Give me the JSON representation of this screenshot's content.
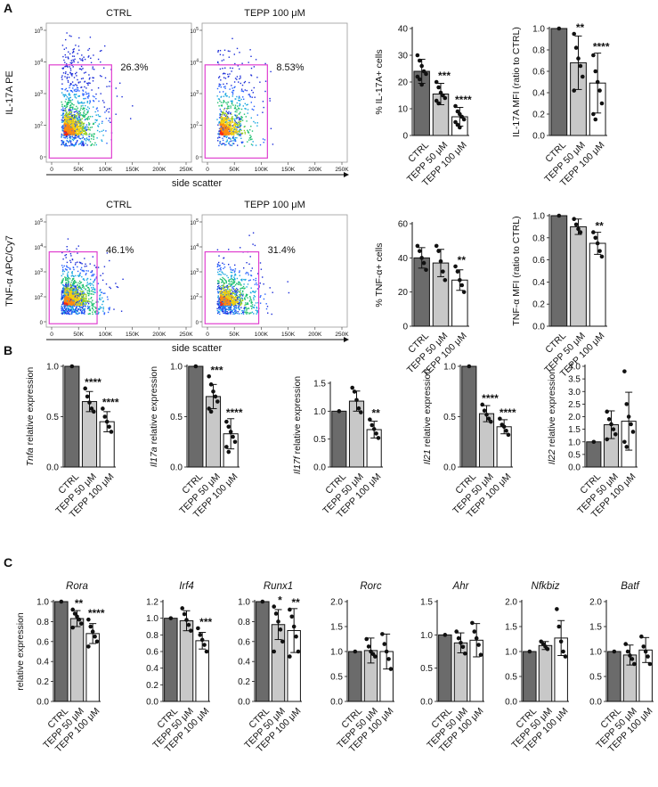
{
  "panels": {
    "a": "A",
    "b": "B",
    "c": "C"
  },
  "colors": {
    "ctrl": "#6b6b6b",
    "tepp50": "#c8c8c8",
    "tepp100": "#ffffff",
    "gate": "#e040d0",
    "axis": "#111111"
  },
  "icons": {
    "star": "significance-asterisk"
  },
  "flow": {
    "x_axis_label": "side scatter",
    "x_ticks": [
      "0",
      "50K",
      "100K",
      "150K",
      "200K",
      "250K"
    ],
    "y_ticks": [
      "10^5",
      "10^4",
      "10^3",
      "10^2",
      "0"
    ],
    "rows": [
      {
        "y_label": "IL-17A PE",
        "plots": [
          {
            "title": "CTRL",
            "gate_pct": "26.3%"
          },
          {
            "title": "TEPP 100 μM",
            "gate_pct": "8.53%"
          }
        ]
      },
      {
        "y_label": "TNF-α APC/Cy7",
        "plots": [
          {
            "title": "CTRL",
            "gate_pct": "46.1%"
          },
          {
            "title": "TEPP 100 μM",
            "gate_pct": "31.4%"
          }
        ]
      }
    ]
  },
  "chart_data": [
    {
      "id": "a1",
      "type": "bar",
      "panel": "A",
      "title": "",
      "ylabel": "% IL-17A+ cells",
      "ylim": [
        0,
        40
      ],
      "yticks": [
        "0",
        "10",
        "20",
        "30",
        "40"
      ],
      "categories": [
        "CTRL",
        "TEPP 50 μM",
        "TEPP 100 μM"
      ],
      "values": [
        24,
        15.5,
        7
      ],
      "errors": [
        4.5,
        4,
        3.5
      ],
      "significance": [
        "",
        "***",
        "****"
      ],
      "points": [
        [
          30,
          28,
          26,
          24,
          23,
          22,
          21,
          19
        ],
        [
          20,
          18,
          16,
          15,
          14,
          13,
          12
        ],
        [
          11,
          9,
          8,
          7,
          6,
          5,
          4,
          3
        ]
      ]
    },
    {
      "id": "a2",
      "type": "bar",
      "panel": "A",
      "title": "",
      "ylabel": "IL-17A MFI (ratio to CTRL)",
      "ylim": [
        0,
        1.0
      ],
      "yticks": [
        "0.0",
        "0.2",
        "0.4",
        "0.6",
        "0.8",
        "1.0"
      ],
      "categories": [
        "CTRL",
        "TEPP 50 μM",
        "TEPP 100 μM"
      ],
      "values": [
        1.0,
        0.68,
        0.49
      ],
      "errors": [
        0,
        0.25,
        0.28
      ],
      "significance": [
        "",
        "**",
        "****"
      ],
      "points": [
        [
          1.0
        ],
        [
          0.95,
          0.82,
          0.72,
          0.65,
          0.55,
          0.42
        ],
        [
          0.75,
          0.6,
          0.5,
          0.42,
          0.3,
          0.2,
          0.15
        ]
      ]
    },
    {
      "id": "a3",
      "type": "bar",
      "panel": "A",
      "title": "",
      "ylabel": "% TNF-α+ cells",
      "ylim": [
        0,
        60
      ],
      "yticks": [
        "0",
        "20",
        "40",
        "60"
      ],
      "categories": [
        "CTRL",
        "TEPP 50 μM",
        "TEPP 100 μM"
      ],
      "values": [
        40,
        37,
        27
      ],
      "errors": [
        6,
        8,
        6
      ],
      "significance": [
        "",
        "",
        "**"
      ],
      "points": [
        [
          47,
          44,
          40,
          37,
          33
        ],
        [
          47,
          44,
          38,
          32,
          27
        ],
        [
          35,
          32,
          27,
          24,
          20
        ]
      ]
    },
    {
      "id": "a4",
      "type": "bar",
      "panel": "A",
      "title": "",
      "ylabel": "TNF-α MFI (ratio to CTRL)",
      "ylim": [
        0,
        1.0
      ],
      "yticks": [
        "0.0",
        "0.2",
        "0.4",
        "0.6",
        "0.8",
        "1.0"
      ],
      "categories": [
        "CTRL",
        "TEPP 50 μM",
        "TEPP 100 μM"
      ],
      "values": [
        1.0,
        0.9,
        0.75
      ],
      "errors": [
        0,
        0.07,
        0.1
      ],
      "significance": [
        "",
        "",
        "**"
      ],
      "points": [
        [
          1.0
        ],
        [
          0.97,
          0.92,
          0.88,
          0.85
        ],
        [
          0.85,
          0.8,
          0.75,
          0.68,
          0.63
        ]
      ]
    },
    {
      "id": "b1",
      "type": "bar",
      "panel": "B",
      "title": "",
      "ylabel": "Tnfa relative expression",
      "ylabel_italic": "Tnfa",
      "ylabel_rest": " relative expression",
      "ylim": [
        0,
        1.0
      ],
      "yticks": [
        "0.0",
        "0.5",
        "1.0"
      ],
      "categories": [
        "CTRL",
        "TEPP 50 μM",
        "TEPP 100 μM"
      ],
      "values": [
        1.0,
        0.65,
        0.45
      ],
      "errors": [
        0,
        0.1,
        0.1
      ],
      "significance": [
        "",
        "****",
        "****"
      ],
      "points": [
        [
          1.0
        ],
        [
          0.78,
          0.7,
          0.64,
          0.58,
          0.55
        ],
        [
          0.58,
          0.5,
          0.45,
          0.4,
          0.35
        ]
      ]
    },
    {
      "id": "b2",
      "type": "bar",
      "panel": "B",
      "title": "",
      "ylabel": "Il17a relative expression",
      "ylabel_italic": "Il17a",
      "ylabel_rest": " relative expression",
      "ylim": [
        0,
        1.0
      ],
      "yticks": [
        "0.0",
        "0.5",
        "1.0"
      ],
      "categories": [
        "CTRL",
        "TEPP 50 μM",
        "TEPP 100 μM"
      ],
      "values": [
        1.0,
        0.7,
        0.33
      ],
      "errors": [
        0,
        0.12,
        0.15
      ],
      "significance": [
        "",
        "***",
        "****"
      ],
      "points": [
        [
          1.0
        ],
        [
          0.9,
          0.82,
          0.75,
          0.7,
          0.65,
          0.58,
          0.55
        ],
        [
          0.45,
          0.4,
          0.35,
          0.3,
          0.25,
          0.2,
          0.15
        ]
      ]
    },
    {
      "id": "b3",
      "type": "bar",
      "panel": "B",
      "title": "",
      "ylabel": "Il17f relative expression",
      "ylabel_italic": "Il17f",
      "ylabel_rest": " relative expression",
      "ylim": [
        0,
        1.5
      ],
      "yticks": [
        "0.0",
        "0.5",
        "1.0",
        "1.5"
      ],
      "categories": [
        "CTRL",
        "TEPP 50 μM",
        "TEPP 100 μM"
      ],
      "values": [
        1.0,
        1.18,
        0.67
      ],
      "errors": [
        0,
        0.18,
        0.15
      ],
      "significance": [
        "",
        "",
        "**"
      ],
      "points": [
        [
          1.0
        ],
        [
          1.42,
          1.35,
          1.2,
          1.05,
          0.98
        ],
        [
          0.85,
          0.75,
          0.68,
          0.6,
          0.52
        ]
      ]
    },
    {
      "id": "b4",
      "type": "bar",
      "panel": "B",
      "title": "",
      "ylabel": "Il21 relative expression",
      "ylabel_italic": "Il21",
      "ylabel_rest": " relative expression",
      "ylim": [
        0,
        1.0
      ],
      "yticks": [
        "0.0",
        "0.5",
        "1.0"
      ],
      "categories": [
        "CTRL",
        "TEPP 50 μM",
        "TEPP 100 μM"
      ],
      "values": [
        1.0,
        0.53,
        0.4
      ],
      "errors": [
        0,
        0.08,
        0.07
      ],
      "significance": [
        "",
        "****",
        "****"
      ],
      "points": [
        [
          1.0
        ],
        [
          0.62,
          0.56,
          0.52,
          0.48,
          0.45
        ],
        [
          0.48,
          0.42,
          0.4,
          0.36,
          0.32
        ]
      ]
    },
    {
      "id": "b5",
      "type": "bar",
      "panel": "B",
      "title": "",
      "ylabel": "Il22 relative expression",
      "ylabel_italic": "Il22",
      "ylabel_rest": " relative expression",
      "ylim": [
        0,
        4.0
      ],
      "yticks": [
        "0.0",
        "0.5",
        "1.0",
        "1.5",
        "2.0",
        "2.5",
        "3.0",
        "3.5",
        "4.0"
      ],
      "categories": [
        "CTRL",
        "TEPP 50 μM",
        "TEPP 100 μM"
      ],
      "values": [
        1.0,
        1.68,
        1.82
      ],
      "errors": [
        0,
        0.55,
        1.15
      ],
      "significance": [
        "",
        "",
        ""
      ],
      "points": [
        [
          1.0
        ],
        [
          2.2,
          1.9,
          1.7,
          1.5,
          1.3,
          1.1
        ],
        [
          3.8,
          2.5,
          2.0,
          1.7,
          1.4,
          1.0,
          0.8
        ]
      ]
    },
    {
      "id": "c1",
      "type": "bar",
      "panel": "C",
      "title": "Rora",
      "ylabel": "relative expression",
      "ylim": [
        0,
        1.0
      ],
      "yticks": [
        "0.0",
        "0.2",
        "0.4",
        "0.6",
        "0.8",
        "1.0"
      ],
      "categories": [
        "CTRL",
        "TEPP 50 μM",
        "TEPP 100 μM"
      ],
      "values": [
        1.0,
        0.83,
        0.68
      ],
      "errors": [
        0,
        0.08,
        0.1
      ],
      "significance": [
        "",
        "**",
        "****"
      ],
      "points": [
        [
          1.0
        ],
        [
          0.92,
          0.88,
          0.85,
          0.82,
          0.78,
          0.74
        ],
        [
          0.82,
          0.75,
          0.7,
          0.65,
          0.6,
          0.55
        ]
      ]
    },
    {
      "id": "c2",
      "type": "bar",
      "panel": "C",
      "title": "Irf4",
      "ylabel": "",
      "ylim": [
        0,
        1.2
      ],
      "yticks": [
        "0.0",
        "0.2",
        "0.4",
        "0.6",
        "0.8",
        "1.0",
        "1.2"
      ],
      "categories": [
        "CTRL",
        "TEPP 50 μM",
        "TEPP 100 μM"
      ],
      "values": [
        1.0,
        0.97,
        0.73
      ],
      "errors": [
        0,
        0.12,
        0.1
      ],
      "significance": [
        "",
        "",
        "***"
      ],
      "points": [
        [
          1.0
        ],
        [
          1.12,
          1.05,
          0.98,
          0.92,
          0.85
        ],
        [
          0.88,
          0.8,
          0.74,
          0.68,
          0.6
        ]
      ]
    },
    {
      "id": "c3",
      "type": "bar",
      "panel": "C",
      "title": "Runx1",
      "ylabel": "",
      "ylim": [
        0,
        1.0
      ],
      "yticks": [
        "0.0",
        "0.2",
        "0.4",
        "0.6",
        "0.8",
        "1.0"
      ],
      "categories": [
        "CTRL",
        "TEPP 50 μM",
        "TEPP 100 μM"
      ],
      "values": [
        1.0,
        0.77,
        0.71
      ],
      "errors": [
        0,
        0.15,
        0.22
      ],
      "significance": [
        "",
        "*",
        "**"
      ],
      "points": [
        [
          1.0
        ],
        [
          0.95,
          0.88,
          0.8,
          0.72,
          0.6,
          0.5
        ],
        [
          0.92,
          0.85,
          0.75,
          0.65,
          0.5,
          0.45
        ]
      ]
    },
    {
      "id": "c4",
      "type": "bar",
      "panel": "C",
      "title": "Rorc",
      "ylabel": "",
      "ylim": [
        0,
        2.0
      ],
      "yticks": [
        "0.0",
        "0.5",
        "1.0",
        "1.5",
        "2.0"
      ],
      "categories": [
        "CTRL",
        "TEPP 50 μM",
        "TEPP 100 μM"
      ],
      "values": [
        1.0,
        1.02,
        1.0
      ],
      "errors": [
        0,
        0.25,
        0.35
      ],
      "significance": [
        "",
        "",
        ""
      ],
      "points": [
        [
          1.0
        ],
        [
          1.25,
          1.1,
          1.0,
          0.95,
          0.9
        ],
        [
          1.35,
          1.15,
          1.0,
          0.85,
          0.65
        ]
      ]
    },
    {
      "id": "c5",
      "type": "bar",
      "panel": "C",
      "title": "Ahr",
      "ylabel": "",
      "ylim": [
        0,
        1.5
      ],
      "yticks": [
        "0.0",
        "0.5",
        "1.0",
        "1.5"
      ],
      "categories": [
        "CTRL",
        "TEPP 50 μM",
        "TEPP 100 μM"
      ],
      "values": [
        1.0,
        0.88,
        0.92
      ],
      "errors": [
        0,
        0.15,
        0.25
      ],
      "significance": [
        "",
        "",
        ""
      ],
      "points": [
        [
          1.0
        ],
        [
          1.05,
          0.95,
          0.88,
          0.82,
          0.72
        ],
        [
          1.18,
          1.05,
          0.95,
          0.85,
          0.7
        ]
      ]
    },
    {
      "id": "c6",
      "type": "bar",
      "panel": "C",
      "title": "Nfkbiz",
      "ylabel": "",
      "ylim": [
        0,
        2.0
      ],
      "yticks": [
        "0.0",
        "0.5",
        "1.0",
        "1.5",
        "2.0"
      ],
      "categories": [
        "CTRL",
        "TEPP 50 μM",
        "TEPP 100 μM"
      ],
      "values": [
        1.0,
        1.12,
        1.27
      ],
      "errors": [
        0,
        0.08,
        0.35
      ],
      "significance": [
        "",
        "",
        ""
      ],
      "points": [
        [
          1.0
        ],
        [
          1.2,
          1.15,
          1.1,
          1.05
        ],
        [
          1.85,
          1.5,
          1.2,
          1.0,
          0.9
        ]
      ]
    },
    {
      "id": "c7",
      "type": "bar",
      "panel": "C",
      "title": "Batf",
      "ylabel": "",
      "ylim": [
        0,
        2.0
      ],
      "yticks": [
        "0.0",
        "0.5",
        "1.0",
        "1.5",
        "2.0"
      ],
      "categories": [
        "CTRL",
        "TEPP 50 μM",
        "TEPP 100 μM"
      ],
      "values": [
        1.0,
        0.93,
        1.03
      ],
      "errors": [
        0,
        0.2,
        0.25
      ],
      "significance": [
        "",
        "",
        ""
      ],
      "points": [
        [
          1.0
        ],
        [
          1.15,
          1.0,
          0.92,
          0.85,
          0.75
        ],
        [
          1.3,
          1.1,
          1.0,
          0.9,
          0.75
        ]
      ]
    }
  ]
}
